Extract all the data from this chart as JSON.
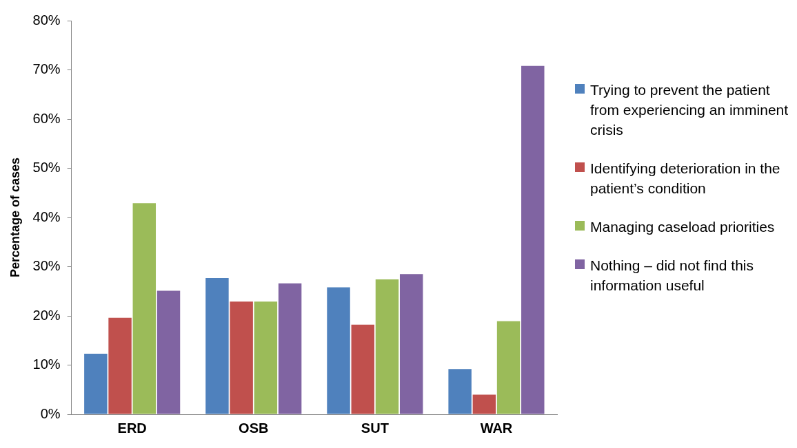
{
  "chart_data": {
    "type": "bar",
    "ylabel": "Percentage of cases",
    "categories": [
      "ERD",
      "OSB",
      "SUT",
      "WAR"
    ],
    "series": [
      {
        "name": "Trying to prevent the patient from experiencing an imminent crisis",
        "color": "#4f81bd",
        "values": [
          12.3,
          27.7,
          25.8,
          9.2
        ]
      },
      {
        "name": "Identifying deterioration in the patient’s condition",
        "color": "#c0504d",
        "values": [
          19.6,
          22.9,
          18.2,
          4.0
        ]
      },
      {
        "name": "Managing caseload priorities",
        "color": "#9bbb59",
        "values": [
          42.9,
          22.9,
          27.4,
          18.9
        ]
      },
      {
        "name": "Nothing – did not find this information useful",
        "color": "#8064a2",
        "values": [
          25.1,
          26.6,
          28.5,
          70.8
        ]
      }
    ],
    "ylim": [
      0,
      80
    ],
    "yticks": [
      {
        "value": 0,
        "label": "0%"
      },
      {
        "value": 10,
        "label": "10%"
      },
      {
        "value": 20,
        "label": "20%"
      },
      {
        "value": 30,
        "label": "30%"
      },
      {
        "value": 40,
        "label": "40%"
      },
      {
        "value": 50,
        "label": "50%"
      },
      {
        "value": 60,
        "label": "60%"
      },
      {
        "value": 70,
        "label": "70%"
      },
      {
        "value": 80,
        "label": "80%"
      }
    ],
    "grid": false,
    "legend": "right"
  }
}
